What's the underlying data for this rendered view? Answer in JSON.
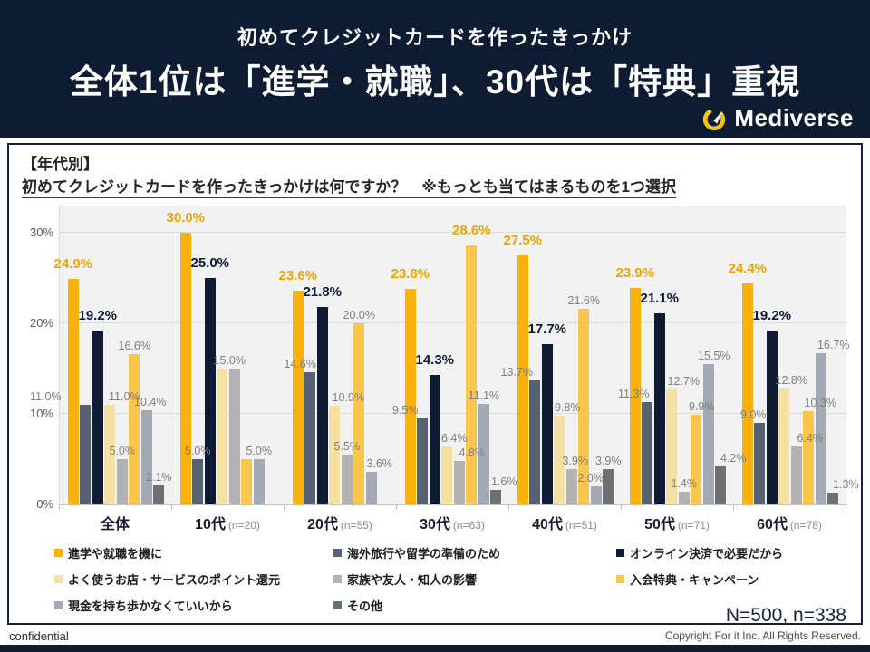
{
  "header": {
    "subtitle": "初めてクレジットカードを作ったきっかけ",
    "title": "全体1位は「進学・就職」、30代は「特典」重視",
    "brand": "Mediverse"
  },
  "panel": {
    "question_label": "【年代別】",
    "question_text": "初めてクレジットカードを作ったきっかけは何ですか？　※もっとも当てはまるものを1つ選択",
    "sample_note": "N=500, n=338"
  },
  "footer": {
    "left": "confidential",
    "right": "Copyright For it Inc. All Rights Reserved."
  },
  "chart_data": {
    "type": "bar",
    "title": "初めてクレジットカードを作ったきっかけ（年代別）",
    "categories": [
      "全体",
      "10代",
      "20代",
      "30代",
      "40代",
      "50代",
      "60代"
    ],
    "category_notes": [
      "",
      "(n=20)",
      "(n=55)",
      "(n=63)",
      "(n=51)",
      "(n=71)",
      "(n=78)"
    ],
    "ylim": [
      0,
      30
    ],
    "yticks": [
      "0%",
      "10%",
      "20%",
      "30%"
    ],
    "grid": true,
    "value_suffix": "%",
    "series": [
      {
        "name": "進学や就職を機に",
        "color": "#F9B10B",
        "values": [
          24.9,
          30.0,
          23.6,
          23.8,
          27.5,
          23.9,
          24.4
        ]
      },
      {
        "name": "海外旅行や留学の準備のため",
        "color": "#566174",
        "values": [
          11.0,
          5.0,
          14.6,
          9.5,
          13.7,
          11.3,
          9.0
        ]
      },
      {
        "name": "オンライン決済で必要だから",
        "color": "#0E1B33",
        "values": [
          19.2,
          25.0,
          21.8,
          14.3,
          17.7,
          21.1,
          19.2
        ]
      },
      {
        "name": "よく使うお店・サービスのポイント還元",
        "color": "#F5E0A3",
        "values": [
          11.0,
          15.0,
          10.9,
          6.4,
          9.8,
          12.7,
          12.8
        ]
      },
      {
        "name": "家族や友人・知人の影響",
        "color": "#B3B3B3",
        "values": [
          5.0,
          15.0,
          5.5,
          4.8,
          3.9,
          1.4,
          6.4
        ]
      },
      {
        "name": "入会特典・キャンペーン",
        "color": "#FAC64E",
        "values": [
          16.6,
          5.0,
          20.0,
          28.6,
          21.6,
          9.9,
          10.3
        ]
      },
      {
        "name": "現金を持ち歩かなくていいから",
        "color": "#A4AAB5",
        "values": [
          10.4,
          5.0,
          3.6,
          11.1,
          2.0,
          15.5,
          16.7
        ]
      },
      {
        "name": "その他",
        "color": "#6E7072",
        "values": [
          2.1,
          0,
          0,
          1.6,
          3.9,
          4.2,
          1.3
        ]
      }
    ],
    "legend_columns": [
      [
        0,
        3,
        6
      ],
      [
        1,
        4,
        7
      ],
      [
        2,
        5
      ]
    ],
    "legend_position": "bottom",
    "hidden_labels": [
      [
        1,
        4
      ],
      [
        1,
        5
      ]
    ],
    "emphasized_labels": [
      [
        3,
        5
      ]
    ],
    "label_dx": {
      "0": {
        "1": -44,
        "3": 16,
        "6": 4
      },
      "1": {
        "3": 8
      },
      "2": {
        "1": -11,
        "3": 15,
        "6": 9
      },
      "3": {
        "1": -19,
        "3": 8,
        "4": 14,
        "7": 9
      },
      "4": {
        "1": -20,
        "3": 9,
        "4": 4,
        "6": -6
      },
      "5": {
        "1": -15,
        "3": 13,
        "5": 6,
        "6": 6,
        "7": 14
      },
      "6": {
        "1": -7,
        "3": 8,
        "4": 15,
        "5": 13,
        "6": 14,
        "7": 14
      }
    },
    "label_colors": {
      "amber": "#EFA400",
      "navy": "#0E1B33",
      "gray": "#7E7E7E"
    }
  }
}
